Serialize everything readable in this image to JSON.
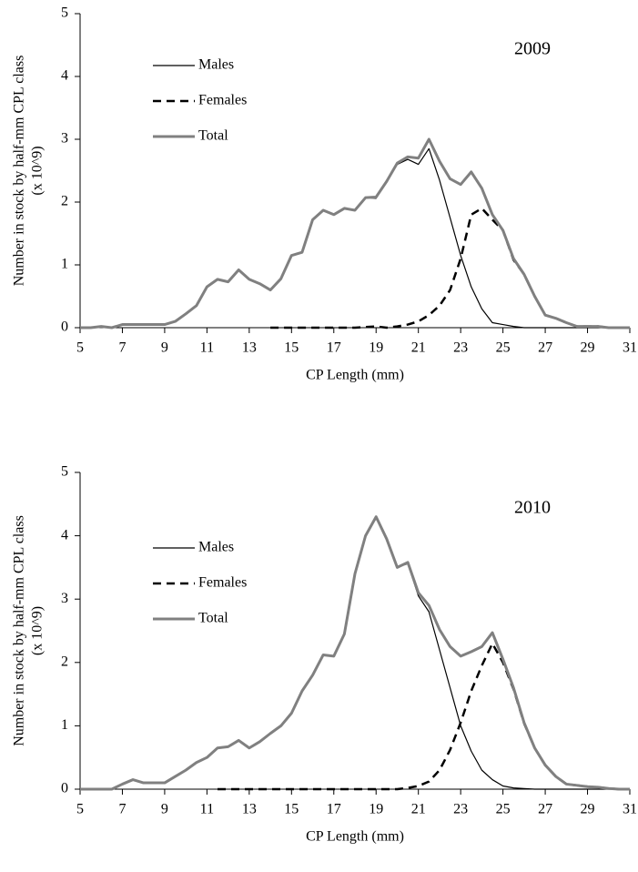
{
  "chart_data": [
    {
      "type": "line",
      "annotation": "2009",
      "xlabel": "CP Length (mm)",
      "ylabel": [
        "Number in stock by half-mm CPL class",
        "(x 10^9)"
      ],
      "x": [
        5,
        5.5,
        6,
        6.5,
        7,
        7.5,
        8,
        8.5,
        9,
        9.5,
        10,
        10.5,
        11,
        11.5,
        12,
        12.5,
        13,
        13.5,
        14,
        14.5,
        15,
        15.5,
        16,
        16.5,
        17,
        17.5,
        18,
        18.5,
        19,
        19.5,
        20,
        20.5,
        21,
        21.5,
        22,
        22.5,
        23,
        23.5,
        24,
        24.5,
        25,
        25.5,
        26,
        26.5,
        27,
        27.5,
        28,
        28.5,
        29,
        29.5,
        30,
        30.5,
        31
      ],
      "series": [
        {
          "name": "Males",
          "color": "#000000",
          "dash": false,
          "values": [
            0,
            0,
            0.02,
            0,
            0.05,
            0.05,
            0.05,
            0.05,
            0.05,
            0.1,
            0.22,
            0.35,
            0.65,
            0.77,
            0.73,
            0.92,
            0.77,
            0.7,
            0.6,
            0.78,
            1.15,
            1.2,
            1.72,
            1.87,
            1.8,
            1.9,
            1.87,
            2.07,
            2.06,
            2.33,
            2.6,
            2.68,
            2.6,
            2.85,
            2.35,
            1.75,
            1.15,
            0.65,
            0.3,
            0.08,
            0.05,
            0.02,
            0,
            0,
            0,
            0,
            0,
            0,
            0,
            0,
            0,
            0,
            0
          ]
        },
        {
          "name": "Females",
          "color": "#000000",
          "dash": true,
          "values": [
            null,
            null,
            null,
            null,
            null,
            null,
            null,
            null,
            null,
            null,
            null,
            null,
            null,
            null,
            null,
            null,
            null,
            null,
            0,
            0,
            0,
            0,
            0,
            0,
            0,
            0,
            0,
            0.01,
            0.02,
            0,
            0.02,
            0.05,
            0.1,
            0.2,
            0.35,
            0.6,
            1.1,
            1.8,
            1.9,
            1.72,
            1.55,
            1.08,
            0.85,
            0.5,
            0.2,
            0.15,
            0.08,
            0.02,
            0.02,
            0.02,
            0,
            0,
            0
          ]
        },
        {
          "name": "Total",
          "color": "#808080",
          "dash": false,
          "values": [
            0,
            0,
            0.02,
            0,
            0.05,
            0.05,
            0.05,
            0.05,
            0.05,
            0.1,
            0.22,
            0.35,
            0.65,
            0.77,
            0.73,
            0.92,
            0.77,
            0.7,
            0.6,
            0.78,
            1.15,
            1.2,
            1.72,
            1.87,
            1.8,
            1.9,
            1.87,
            2.07,
            2.08,
            2.33,
            2.62,
            2.72,
            2.7,
            3.0,
            2.65,
            2.37,
            2.28,
            2.48,
            2.22,
            1.8,
            1.55,
            1.1,
            0.85,
            0.5,
            0.2,
            0.15,
            0.08,
            0.02,
            0.02,
            0.02,
            0,
            0,
            0
          ]
        }
      ],
      "xlim": [
        5,
        31
      ],
      "xticks": [
        5,
        7,
        9,
        11,
        13,
        15,
        17,
        19,
        21,
        23,
        25,
        27,
        29,
        31
      ],
      "ylim": [
        0,
        5
      ],
      "yticks": [
        0,
        1,
        2,
        3,
        4,
        5
      ],
      "grid": false,
      "legend": "upper left"
    },
    {
      "type": "line",
      "annotation": "2010",
      "xlabel": "CP Length (mm)",
      "ylabel": [
        "Number in stock by half-mm CPL class",
        "(x 10^9)"
      ],
      "x": [
        5,
        5.5,
        6,
        6.5,
        7,
        7.5,
        8,
        8.5,
        9,
        9.5,
        10,
        10.5,
        11,
        11.5,
        12,
        12.5,
        13,
        13.5,
        14,
        14.5,
        15,
        15.5,
        16,
        16.5,
        17,
        17.5,
        18,
        18.5,
        19,
        19.5,
        20,
        20.5,
        21,
        21.5,
        22,
        22.5,
        23,
        23.5,
        24,
        24.5,
        25,
        25.5,
        26,
        26.5,
        27,
        27.5,
        28,
        28.5,
        29,
        29.5,
        30,
        30.5,
        31
      ],
      "series": [
        {
          "name": "Males",
          "color": "#000000",
          "dash": false,
          "values": [
            0,
            0,
            0,
            0,
            0.08,
            0.15,
            0.1,
            0.1,
            0.1,
            0.2,
            0.3,
            0.42,
            0.5,
            0.65,
            0.67,
            0.77,
            0.65,
            0.75,
            0.88,
            1.0,
            1.2,
            1.55,
            1.8,
            2.12,
            2.1,
            2.45,
            3.4,
            4.0,
            4.3,
            3.95,
            3.5,
            3.56,
            3.05,
            2.8,
            2.2,
            1.6,
            1.0,
            0.6,
            0.3,
            0.15,
            0.05,
            0.02,
            0.01,
            0,
            0,
            0,
            0,
            0,
            0,
            0,
            0,
            0,
            0
          ]
        },
        {
          "name": "Females",
          "color": "#000000",
          "dash": true,
          "values": [
            null,
            null,
            null,
            null,
            null,
            null,
            null,
            null,
            null,
            null,
            null,
            null,
            null,
            0,
            0,
            0,
            0,
            0,
            0,
            0,
            0,
            0,
            0,
            0,
            0,
            0,
            0,
            0,
            0,
            0,
            0,
            0.02,
            0.05,
            0.12,
            0.3,
            0.62,
            1.05,
            1.55,
            1.95,
            2.3,
            2.0,
            1.58,
            1.04,
            0.65,
            0.38,
            0.2,
            0.08,
            0.06,
            0.04,
            0.03,
            0.01,
            0,
            0
          ]
        },
        {
          "name": "Total",
          "color": "#808080",
          "dash": false,
          "values": [
            0,
            0,
            0,
            0,
            0.08,
            0.15,
            0.1,
            0.1,
            0.1,
            0.2,
            0.3,
            0.42,
            0.5,
            0.65,
            0.67,
            0.77,
            0.65,
            0.75,
            0.88,
            1.0,
            1.2,
            1.55,
            1.8,
            2.12,
            2.1,
            2.45,
            3.4,
            4.0,
            4.3,
            3.95,
            3.5,
            3.58,
            3.1,
            2.9,
            2.52,
            2.25,
            2.1,
            2.17,
            2.25,
            2.47,
            2.05,
            1.6,
            1.05,
            0.65,
            0.38,
            0.2,
            0.08,
            0.06,
            0.04,
            0.03,
            0.01,
            0,
            0
          ]
        }
      ],
      "xlim": [
        5,
        31
      ],
      "xticks": [
        5,
        7,
        9,
        11,
        13,
        15,
        17,
        19,
        21,
        23,
        25,
        27,
        29,
        31
      ],
      "ylim": [
        0,
        5
      ],
      "yticks": [
        0,
        1,
        2,
        3,
        4,
        5
      ],
      "grid": false,
      "legend": "upper left"
    }
  ]
}
